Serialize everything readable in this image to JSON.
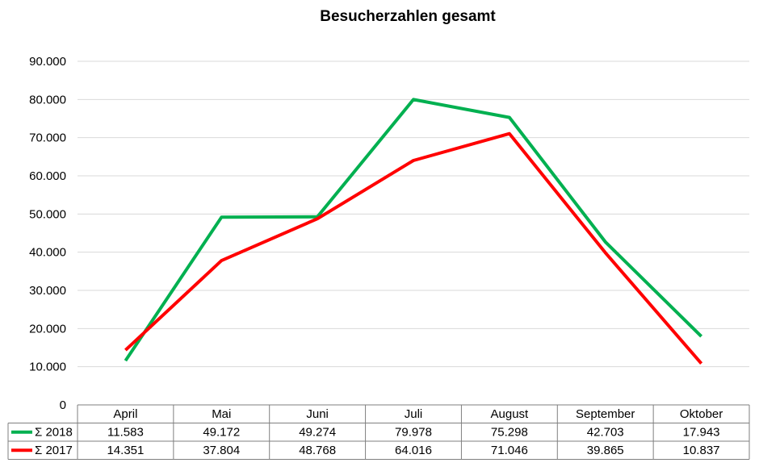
{
  "chart_data": {
    "type": "line",
    "title": "Besucherzahlen gesamt",
    "categories": [
      "April",
      "Mai",
      "Juni",
      "Juli",
      "August",
      "September",
      "Oktober"
    ],
    "ylim": [
      0,
      90000
    ],
    "y_ticks": [
      "0",
      "10.000",
      "20.000",
      "30.000",
      "40.000",
      "50.000",
      "60.000",
      "70.000",
      "80.000",
      "90.000"
    ],
    "grid": true,
    "legend": "data-table",
    "series": [
      {
        "name": "Σ 2018",
        "color": "#00B050",
        "values": [
          11583,
          49172,
          49274,
          79978,
          75298,
          42703,
          17943
        ],
        "labels": [
          "11.583",
          "49.172",
          "49.274",
          "79.978",
          "75.298",
          "42.703",
          "17.943"
        ]
      },
      {
        "name": "Σ 2017",
        "color": "#FF0000",
        "values": [
          14351,
          37804,
          48768,
          64016,
          71046,
          39865,
          10837
        ],
        "labels": [
          "14.351",
          "37.804",
          "48.768",
          "64.016",
          "71.046",
          "39.865",
          "10.837"
        ]
      }
    ]
  }
}
